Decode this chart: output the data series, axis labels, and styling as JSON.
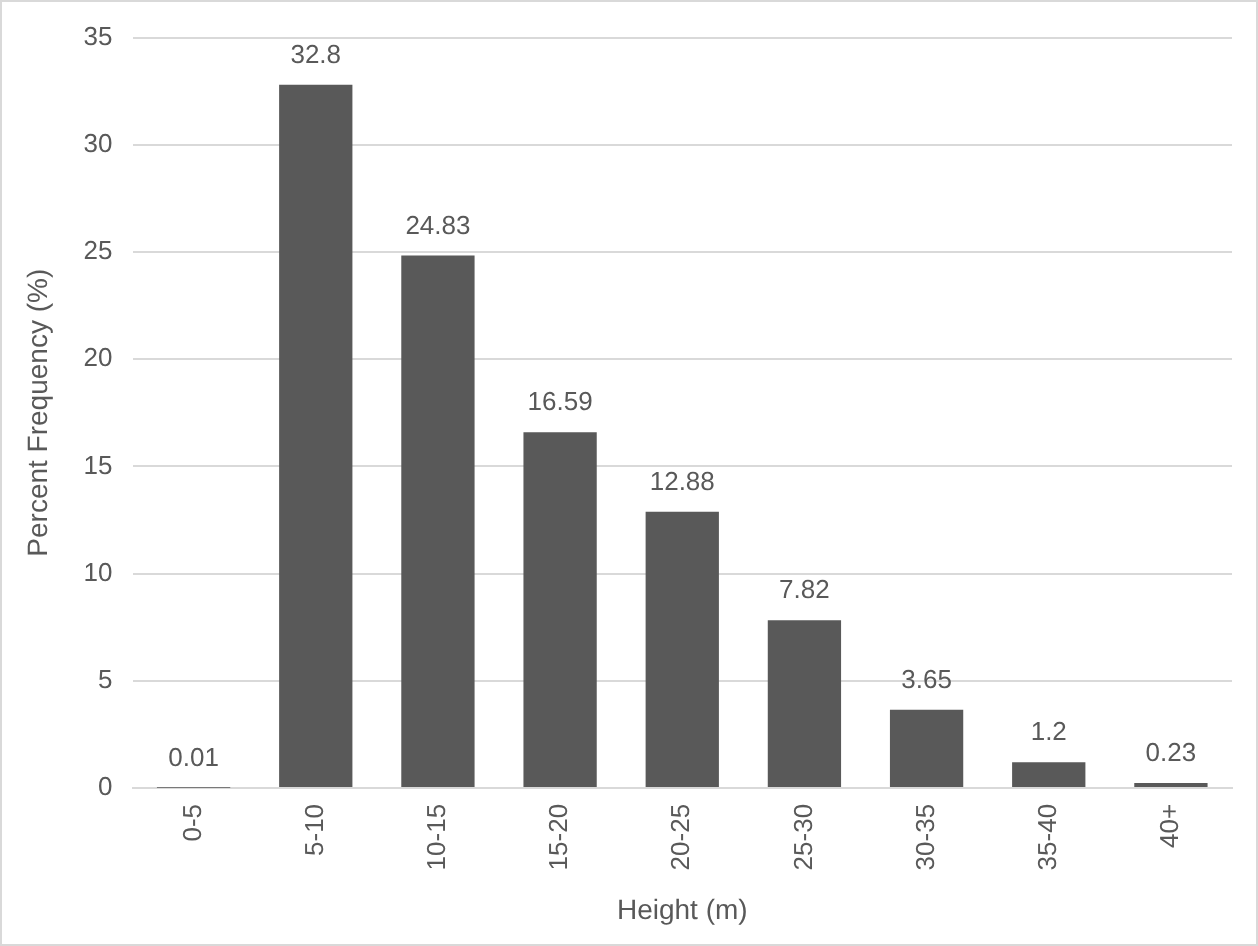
{
  "chart_data": {
    "type": "bar",
    "xlabel": "Height (m)",
    "ylabel": "Percent Frequency (%)",
    "categories": [
      "0-5",
      "5-10",
      "10-15",
      "15-20",
      "20-25",
      "25-30",
      "30-35",
      "35-40",
      "40+"
    ],
    "values": [
      0.01,
      32.8,
      24.83,
      16.59,
      12.88,
      7.82,
      3.65,
      1.2,
      0.23
    ],
    "color": "#595959",
    "ylim": [
      0,
      35
    ],
    "yticks": [
      0,
      5,
      10,
      15,
      20,
      25,
      30,
      35
    ],
    "grid": "y",
    "legend": false,
    "data_labels": true
  }
}
